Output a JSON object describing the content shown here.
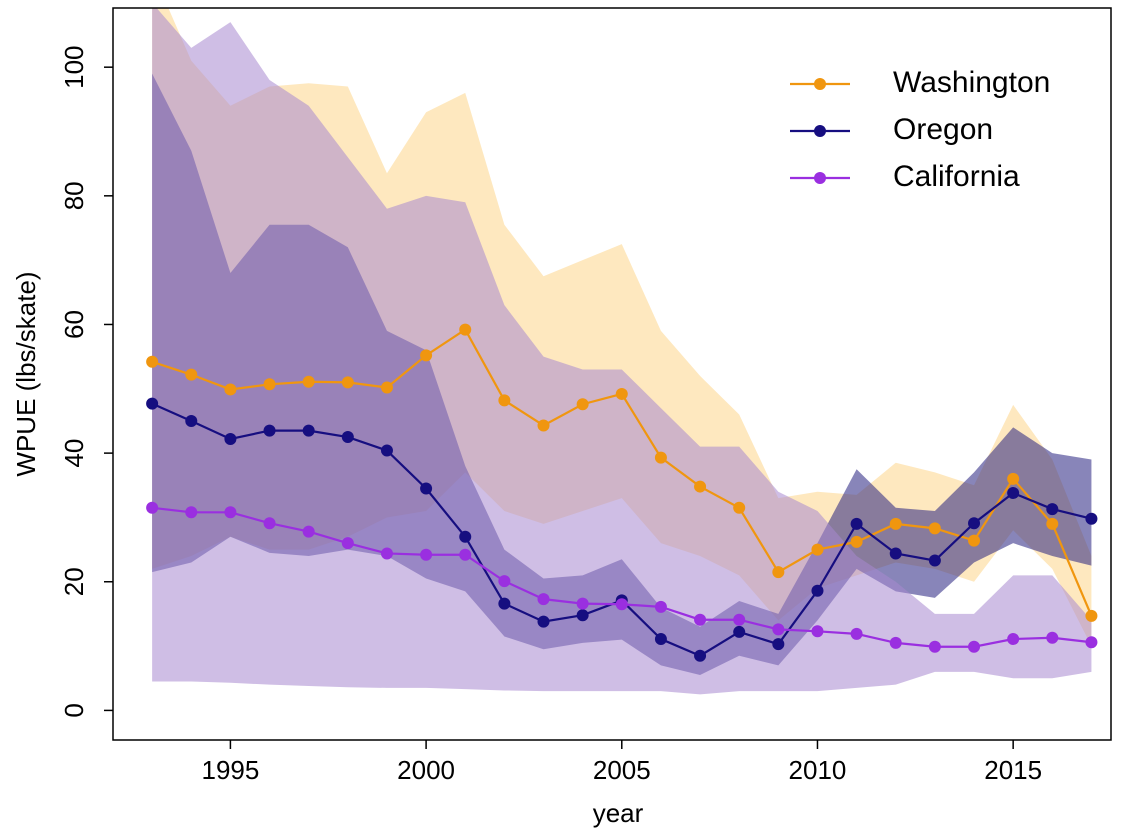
{
  "chart_data": {
    "type": "line",
    "x_label": "year",
    "y_label": "WPUE (lbs/skate)",
    "x": [
      1993,
      1994,
      1995,
      1996,
      1997,
      1998,
      1999,
      2000,
      2001,
      2002,
      2003,
      2004,
      2005,
      2006,
      2007,
      2008,
      2009,
      2010,
      2011,
      2012,
      2013,
      2014,
      2015,
      2016,
      2017
    ],
    "xlim": [
      1992,
      2017.5
    ],
    "xticks": [
      1995,
      2000,
      2005,
      2010,
      2015
    ],
    "ylim": [
      -4.6,
      109.2
    ],
    "yticks": [
      0,
      20,
      40,
      60,
      80,
      100
    ],
    "legend": "top-right",
    "series": [
      {
        "name": "Washington",
        "color": "#f0960f",
        "band_color": "#fdd58a",
        "values": [
          54.2,
          52.2,
          49.9,
          50.7,
          51.1,
          51.0,
          50.2,
          55.2,
          59.2,
          48.2,
          44.3,
          47.6,
          49.2,
          39.3,
          34.8,
          31.5,
          21.5,
          25.0,
          26.2,
          29.0,
          28.3,
          26.4,
          36.0,
          29.0,
          14.7
        ],
        "upper": [
          115,
          101,
          94,
          97,
          97.5,
          97,
          83.5,
          93,
          96,
          75.5,
          67.5,
          70,
          72.5,
          59,
          52,
          46,
          33,
          34,
          33.5,
          38.5,
          37,
          35,
          47.5,
          39,
          24
        ],
        "lower": [
          22,
          24,
          27,
          25,
          25,
          27,
          30,
          31,
          37,
          31,
          29,
          31,
          33,
          26,
          24,
          21,
          14,
          19,
          21,
          23,
          22,
          20,
          28,
          22,
          10
        ]
      },
      {
        "name": "Oregon",
        "color": "#160e80",
        "band_color": "#27207f",
        "values": [
          47.7,
          45.0,
          42.2,
          43.5,
          43.5,
          42.5,
          40.4,
          34.5,
          27.0,
          16.6,
          13.8,
          14.8,
          17.1,
          11.1,
          8.5,
          12.2,
          10.3,
          18.6,
          29.0,
          24.4,
          23.3,
          29.1,
          33.8,
          31.3,
          29.8
        ],
        "upper": [
          99,
          87,
          68,
          75.5,
          75.5,
          72,
          59,
          56,
          38,
          25,
          20.5,
          21,
          23.5,
          16,
          13,
          17,
          15,
          26,
          37.5,
          31.5,
          31,
          37,
          44,
          40,
          39
        ],
        "lower": [
          21.5,
          23,
          27,
          24.5,
          24,
          25,
          24,
          20.5,
          18.5,
          11.5,
          9.5,
          10.5,
          11,
          7,
          5.5,
          8.5,
          7,
          14,
          22,
          18.5,
          17.5,
          23,
          26,
          24,
          22.5
        ]
      },
      {
        "name": "California",
        "color": "#9a2fe0",
        "band_color": "#a888cf",
        "values": [
          31.5,
          30.8,
          30.8,
          29.1,
          27.8,
          26.0,
          24.4,
          24.2,
          24.2,
          20.1,
          17.3,
          16.6,
          16.5,
          16.1,
          14.1,
          14.1,
          12.6,
          12.3,
          11.9,
          10.5,
          9.9,
          9.9,
          11.1,
          11.3,
          10.6
        ],
        "upper": [
          110,
          103,
          107,
          98,
          94,
          86,
          78,
          80,
          79,
          63,
          55,
          53,
          53,
          47,
          41,
          41,
          34,
          31,
          24,
          20,
          15,
          15,
          21,
          21,
          14
        ],
        "lower": [
          4.5,
          4.5,
          4.3,
          4,
          3.8,
          3.6,
          3.5,
          3.5,
          3.3,
          3.1,
          3,
          3,
          3,
          3,
          2.5,
          3,
          3,
          3,
          3.5,
          4,
          6,
          6,
          5,
          5,
          6
        ]
      }
    ]
  }
}
